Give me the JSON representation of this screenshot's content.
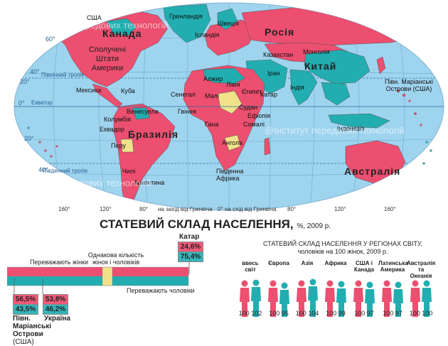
{
  "map": {
    "countries": [
      {
        "name": "Канада",
        "size": "big"
      },
      {
        "name": "США",
        "size": "small"
      },
      {
        "name": "Сполучені Штати Америки",
        "size": "mid"
      },
      {
        "name": "Мексика",
        "size": "small"
      },
      {
        "name": "Куба",
        "size": "small"
      },
      {
        "name": "Венесуела",
        "size": "small"
      },
      {
        "name": "Колумбія",
        "size": "small"
      },
      {
        "name": "Еквадор",
        "size": "small"
      },
      {
        "name": "Перу",
        "size": "small"
      },
      {
        "name": "Бразилія",
        "size": "big"
      },
      {
        "name": "Чилі",
        "size": "small"
      },
      {
        "name": "Аргентина",
        "size": "small"
      },
      {
        "name": "Гренландія",
        "size": "small"
      },
      {
        "name": "Ісландія",
        "size": "small"
      },
      {
        "name": "Швеція",
        "size": "small"
      },
      {
        "name": "Росія",
        "size": "big"
      },
      {
        "name": "Казахстан",
        "size": "small"
      },
      {
        "name": "Монголія",
        "size": "small"
      },
      {
        "name": "Китай",
        "size": "big"
      },
      {
        "name": "Іран",
        "size": "small"
      },
      {
        "name": "Індія",
        "size": "small"
      },
      {
        "name": "Катар",
        "size": "small"
      },
      {
        "name": "Алжир",
        "size": "small"
      },
      {
        "name": "Лівія",
        "size": "small"
      },
      {
        "name": "Єгипет",
        "size": "small"
      },
      {
        "name": "Малі",
        "size": "small"
      },
      {
        "name": "Сенегал",
        "size": "small"
      },
      {
        "name": "Гвінея",
        "size": "small"
      },
      {
        "name": "Гана",
        "size": "small"
      },
      {
        "name": "Судан",
        "size": "small"
      },
      {
        "name": "Ефіопія",
        "size": "small"
      },
      {
        "name": "Сомалі",
        "size": "small"
      },
      {
        "name": "Ангола",
        "size": "small"
      },
      {
        "name": "Південна Африка",
        "size": "small"
      },
      {
        "name": "Індонезія",
        "size": "small"
      },
      {
        "name": "Австралія",
        "size": "big"
      },
      {
        "name": "Півн. Маріанські Острови (США)",
        "size": "small"
      }
    ],
    "lines": {
      "north_tropic": "Північний тропік",
      "equator": "Екватор",
      "south_tropic": "Південний тропік"
    },
    "degrees": [
      "60°",
      "40°",
      "20°",
      "0°",
      "20°",
      "40°",
      "160°",
      "120°",
      "80°",
      "40°",
      "0°",
      "40°",
      "80°",
      "120°",
      "160°"
    ],
    "meridian_labels": [
      "на захід від Гринвіча",
      "на схід від Гринвіча"
    ],
    "watermark": "@Інститут передових технологій",
    "colors": {
      "women": "#ec4f6f",
      "men": "#22aeb0",
      "equal": "#f1e28a",
      "ocean": "#9fd4ef",
      "outer": "#ffffff"
    }
  },
  "chart": {
    "title": "СТАТЕВИЙ СКЛАД НАСЕЛЕННЯ,",
    "title_note": "%, 2009 р.",
    "bar_labels": {
      "women": "Переважають жінки",
      "equal": "Однакова кількість жінок і чоловіків",
      "men": "Переважають чоловіки"
    },
    "examples": [
      {
        "country": "Півн. Маріанські Острови",
        "note": "(США)",
        "women": "56,5%",
        "men": "43,5%"
      },
      {
        "country": "Україна",
        "note": "",
        "women": "53,8%",
        "men": "46,2%"
      },
      {
        "country": "Катар",
        "note": "",
        "women": "24,6%",
        "men": "75,4%"
      }
    ],
    "regions_title": "СТАТЕВИЙ СКЛАД НАСЕЛЕННЯ У РЕГІОНАХ СВІТУ, чоловіків на 100 жінок, 2009 р.",
    "regions": [
      {
        "name": "ввесь світ",
        "women": "100",
        "men": "102"
      },
      {
        "name": "Європа",
        "women": "100",
        "men": "95"
      },
      {
        "name": "Азія",
        "women": "100",
        "men": "104"
      },
      {
        "name": "Африка",
        "women": "100",
        "men": "99"
      },
      {
        "name": "США і Канада",
        "women": "100",
        "men": "97"
      },
      {
        "name": "Латинська Америка",
        "women": "100",
        "men": "97"
      },
      {
        "name": "Австралія та Океанія",
        "women": "100",
        "men": "100"
      }
    ]
  }
}
